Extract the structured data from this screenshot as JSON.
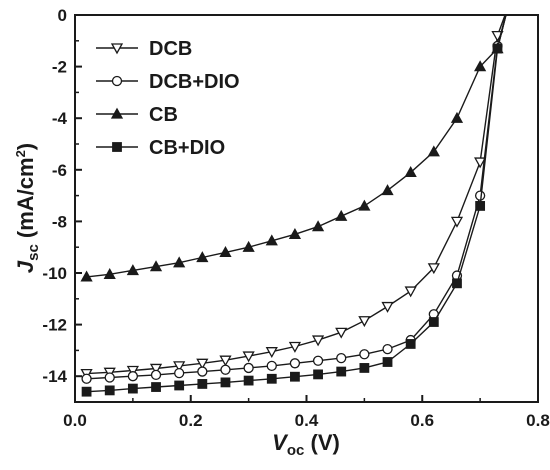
{
  "chart_data": {
    "type": "line",
    "xlabel": {
      "main": "V",
      "sub": "oc",
      "unit": " (V)"
    },
    "ylabel": {
      "main": "J",
      "sub": "sc",
      "unit": " (mA/cm",
      "sup": "2",
      "close": ")"
    },
    "xlim": [
      0.0,
      0.8
    ],
    "ylim": [
      -15,
      0
    ],
    "xticks": [
      "0.0",
      "0.2",
      "0.4",
      "0.6",
      "0.8"
    ],
    "yticks": [
      "0",
      "-2",
      "-4",
      "-6",
      "-8",
      "-10",
      "-12",
      "-14"
    ],
    "grid": false,
    "legend_position": "top-left",
    "series": [
      {
        "name": "DCB",
        "marker": "triangle-down-open",
        "x": [
          0.02,
          0.06,
          0.1,
          0.14,
          0.18,
          0.22,
          0.26,
          0.3,
          0.34,
          0.38,
          0.42,
          0.46,
          0.5,
          0.54,
          0.58,
          0.62,
          0.66,
          0.7,
          0.73
        ],
        "y": [
          -13.9,
          -13.85,
          -13.78,
          -13.7,
          -13.6,
          -13.5,
          -13.38,
          -13.22,
          -13.05,
          -12.85,
          -12.6,
          -12.3,
          -11.85,
          -11.3,
          -10.7,
          -9.8,
          -8.0,
          -5.7,
          -0.8
        ]
      },
      {
        "name": "DCB+DIO",
        "marker": "circle-open",
        "x": [
          0.02,
          0.06,
          0.1,
          0.14,
          0.18,
          0.22,
          0.26,
          0.3,
          0.34,
          0.38,
          0.42,
          0.46,
          0.5,
          0.54,
          0.58,
          0.62,
          0.66,
          0.7,
          0.73
        ],
        "y": [
          -14.1,
          -14.05,
          -14.0,
          -13.95,
          -13.88,
          -13.82,
          -13.75,
          -13.68,
          -13.6,
          -13.5,
          -13.4,
          -13.3,
          -13.15,
          -12.95,
          -12.6,
          -11.6,
          -10.1,
          -7.0,
          -1.2
        ]
      },
      {
        "name": "CB",
        "marker": "triangle-up-filled",
        "x": [
          0.02,
          0.06,
          0.1,
          0.14,
          0.18,
          0.22,
          0.26,
          0.3,
          0.34,
          0.38,
          0.42,
          0.46,
          0.5,
          0.54,
          0.58,
          0.62,
          0.66,
          0.7,
          0.73
        ],
        "y": [
          -10.15,
          -10.05,
          -9.9,
          -9.75,
          -9.6,
          -9.4,
          -9.2,
          -9.0,
          -8.75,
          -8.5,
          -8.2,
          -7.8,
          -7.4,
          -6.8,
          -6.1,
          -5.3,
          -4.0,
          -2.0,
          -1.3
        ]
      },
      {
        "name": "CB+DIO",
        "marker": "square-filled",
        "x": [
          0.02,
          0.06,
          0.1,
          0.14,
          0.18,
          0.22,
          0.26,
          0.3,
          0.34,
          0.38,
          0.42,
          0.46,
          0.5,
          0.54,
          0.58,
          0.62,
          0.66,
          0.7,
          0.73
        ],
        "y": [
          -14.6,
          -14.55,
          -14.48,
          -14.42,
          -14.36,
          -14.3,
          -14.24,
          -14.17,
          -14.1,
          -14.02,
          -13.93,
          -13.82,
          -13.68,
          -13.45,
          -12.75,
          -11.9,
          -10.4,
          -7.4,
          -1.3
        ]
      }
    ]
  }
}
